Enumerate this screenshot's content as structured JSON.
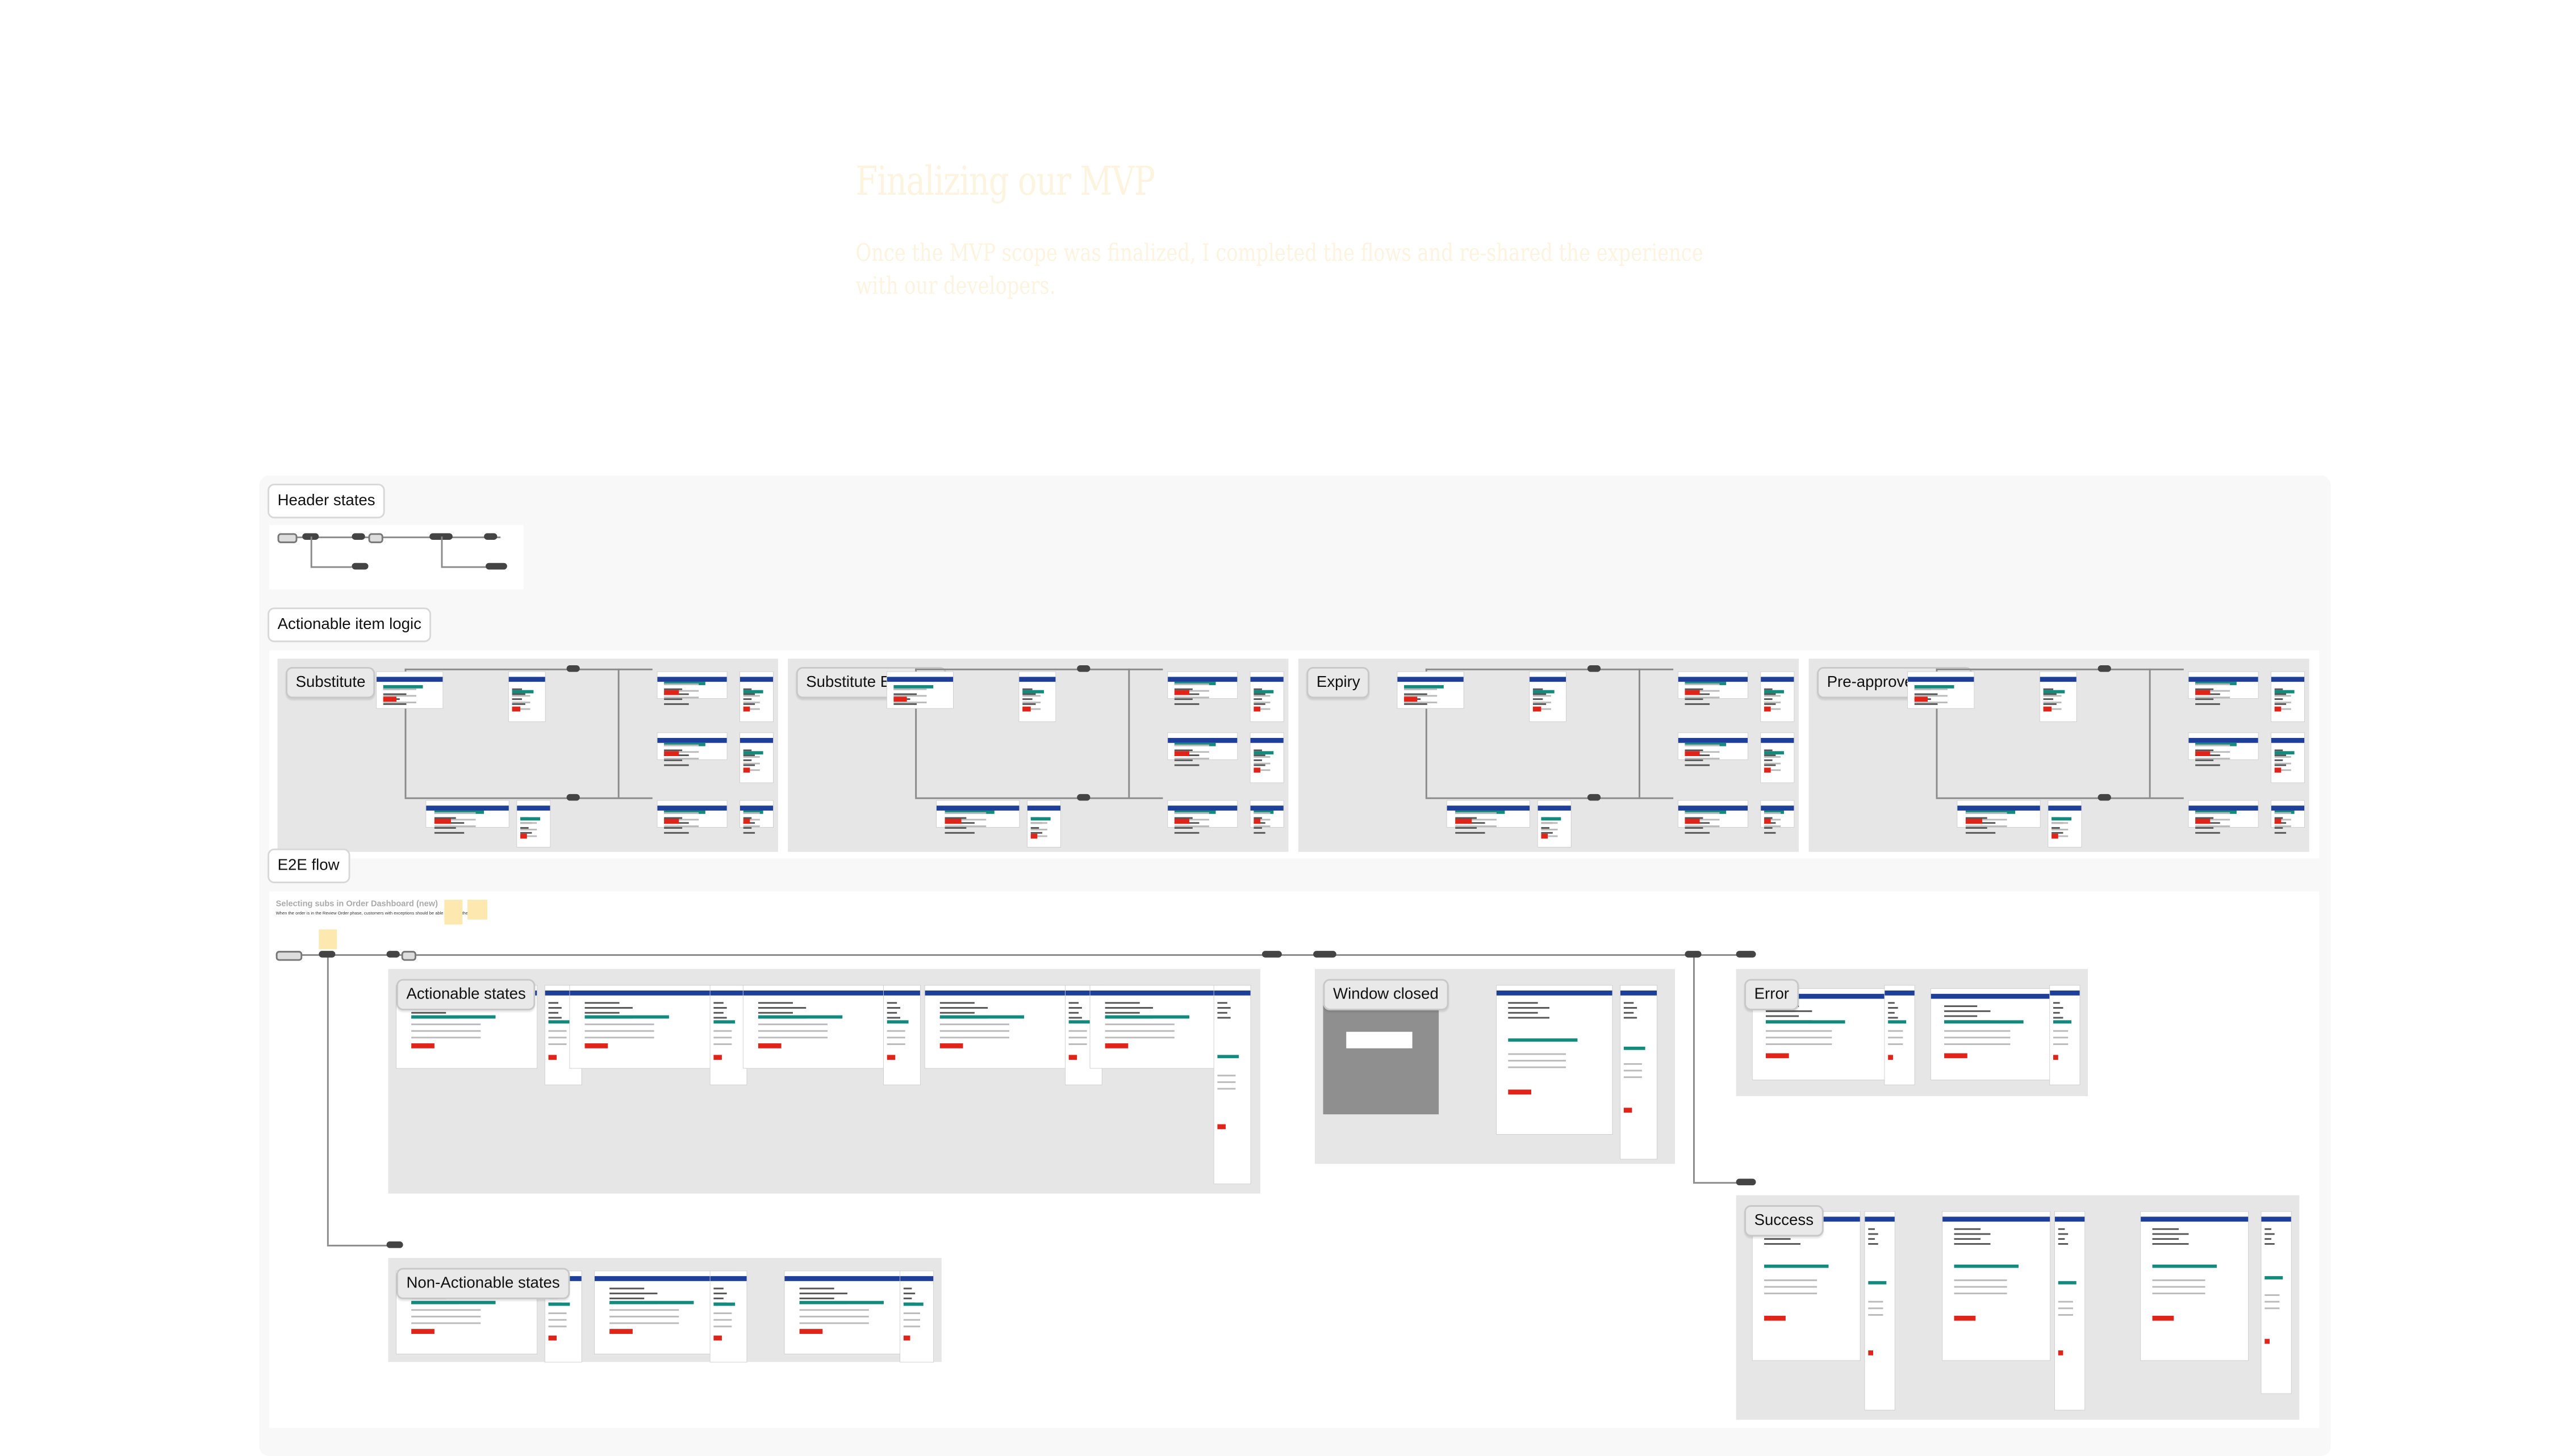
{
  "intro": {
    "title": "Finalizing our MVP",
    "paragraph": "Once the MVP scope was finalized, I completed the flows and re-shared the experience with our developers."
  },
  "sections": {
    "header_states": "Header states",
    "actionable_item_logic": "Actionable item logic",
    "e2e_flow": "E2E flow"
  },
  "logic_cards": [
    "Substitute",
    "Substitute Expiring",
    "Expiry",
    "Pre-approved Subs"
  ],
  "e2e": {
    "heading": "Selecting subs in Order Dashboard (new)",
    "description": "When the order is in the Review Order phase, customers with exceptions should be able to act on their order.",
    "groups": {
      "actionable": "Actionable states",
      "window_closed": "Window closed",
      "error": "Error",
      "non_actionable": "Non-Actionable states",
      "success": "Success"
    }
  },
  "colors": {
    "title_text": "#fdf4e0",
    "board": "#f8f8f8",
    "card": "#e6e6e6",
    "brand_blue": "#1d3f9a",
    "brand_red": "#e0241a",
    "progress_teal": "#138a7e",
    "sticky": "#fde9b0"
  }
}
